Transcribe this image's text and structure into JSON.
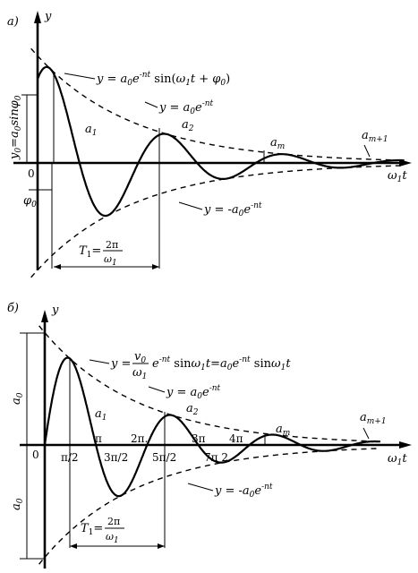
{
  "panel_a": {
    "label": "а)",
    "y_axis": "y",
    "x_axis": {
      "main": "ω",
      "sub": "1",
      "t": "t"
    },
    "origin": "0",
    "eq_main": "y=a₀e^(-nt)sin(ω₁t+φ₀)",
    "eq_upper_env": "y=a₀e^(-nt)",
    "eq_lower_env": "y=-a₀e^(-nt)",
    "y0_label": "y₀=a₀sinφ₀",
    "phi0": "φ₀",
    "a1": "a₁",
    "a2": "a₂",
    "am": "a_m",
    "am1": "a_m+1",
    "period": "T₁=2π/ω₁"
  },
  "panel_b": {
    "label": "б)",
    "y_axis": "y",
    "x_axis": {
      "main": "ω",
      "sub": "1",
      "t": "t"
    },
    "origin": "0",
    "eq_main": "y=(v₀/ω₁)e^(-nt)sinω₁t=a₀e^(-nt)sinω₁t",
    "eq_upper_env": "y=a₀e^(-nt)",
    "eq_lower_env": "y=-a₀e^(-nt)",
    "a0": "a₀",
    "a1": "a₁",
    "a2": "a₂",
    "am": "a_m",
    "am1": "a_m+1",
    "period": "T₁=2π/ω₁",
    "ticks_below": [
      "π/2",
      "3π/2",
      "5π/2",
      "7π 2"
    ],
    "ticks_above": [
      "π",
      "2π",
      "3π",
      "4π"
    ]
  }
}
